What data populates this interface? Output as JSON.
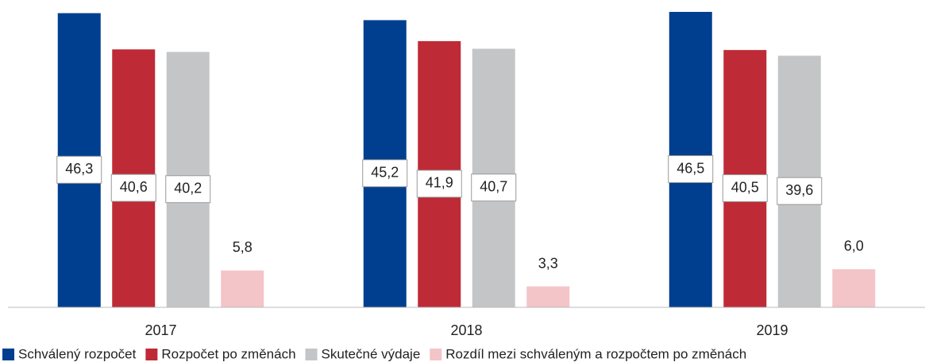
{
  "chart_data": {
    "type": "bar",
    "categories": [
      "2017",
      "2018",
      "2019"
    ],
    "series": [
      {
        "name": "Schválený rozpočet",
        "color": "#003f8f",
        "values": [
          46.3,
          45.2,
          46.5
        ],
        "value_labels": [
          "46,3",
          "45,2",
          "46,5"
        ]
      },
      {
        "name": "Rozpočet po změnách",
        "color": "#be2a36",
        "values": [
          40.6,
          41.9,
          40.5
        ],
        "value_labels": [
          "40,6",
          "41,9",
          "40,5"
        ]
      },
      {
        "name": "Skutečné výdaje",
        "color": "#c4c5c7",
        "values": [
          40.2,
          40.7,
          39.6
        ],
        "value_labels": [
          "40,2",
          "40,7",
          "39,6"
        ]
      },
      {
        "name": "Rozdíl mezi schváleným a rozpočtem po změnách",
        "color": "#f3c4c8",
        "values": [
          5.8,
          3.3,
          6.0
        ],
        "value_labels": [
          "5,8",
          "3,3",
          "6,0"
        ]
      }
    ],
    "ylim": [
      0,
      47
    ],
    "legend": "bottom"
  }
}
